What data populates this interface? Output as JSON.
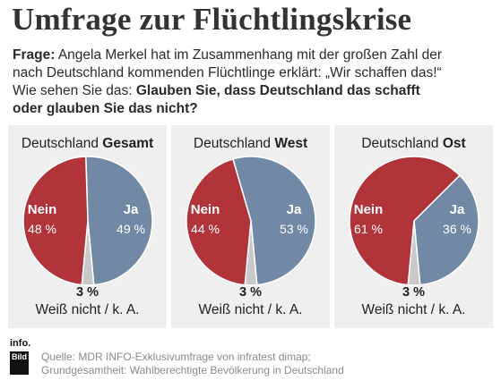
{
  "title": "Umfrage zur Flüchtlingskrise",
  "question": {
    "prefix": "Frage:",
    "line1_rest": " Angela Merkel hat im Zusammenhang mit der großen Zahl der",
    "line2": "nach Deutschland kommenden Flüchtlinge erklärt: „Wir schaffen das!“",
    "line3_plain": "Wie sehen Sie das: ",
    "line3_bold": "Glauben Sie, dass Deutschland das schafft",
    "line4_bold": "oder glauben Sie das nicht?"
  },
  "colors": {
    "ja": "#7289a6",
    "nein": "#b1343b",
    "ka": "#c9c9c9",
    "panel": "#efefef"
  },
  "chart_data": [
    {
      "type": "pie",
      "title_plain": "Deutschland ",
      "title_bold": "Gesamt",
      "slices": [
        {
          "name": "Ja",
          "value": 49,
          "label": "49 %"
        },
        {
          "name": "Nein",
          "value": 48,
          "label": "48 %"
        },
        {
          "name": "Weiß nicht / k. A.",
          "value": 3,
          "label": "3 %"
        }
      ]
    },
    {
      "type": "pie",
      "title_plain": "Deutschland ",
      "title_bold": "West",
      "slices": [
        {
          "name": "Ja",
          "value": 53,
          "label": "53 %"
        },
        {
          "name": "Nein",
          "value": 44,
          "label": "44 %"
        },
        {
          "name": "Weiß nicht / k. A.",
          "value": 3,
          "label": "3 %"
        }
      ]
    },
    {
      "type": "pie",
      "title_plain": "Deutschland ",
      "title_bold": "Ost",
      "slices": [
        {
          "name": "Ja",
          "value": 36,
          "label": "36 %"
        },
        {
          "name": "Nein",
          "value": 61,
          "label": "61 %"
        },
        {
          "name": "Weiß nicht / k. A.",
          "value": 3,
          "label": "3 %"
        }
      ]
    }
  ],
  "logo": {
    "top": "info.",
    "bottom": "Bild"
  },
  "source": {
    "line1": "Quelle: MDR INFO-Exklusivumfrage von infratest dimap;",
    "line2": "Grundgesamtheit: Wahlberechtigte Bevölkerung in Deutschland"
  }
}
